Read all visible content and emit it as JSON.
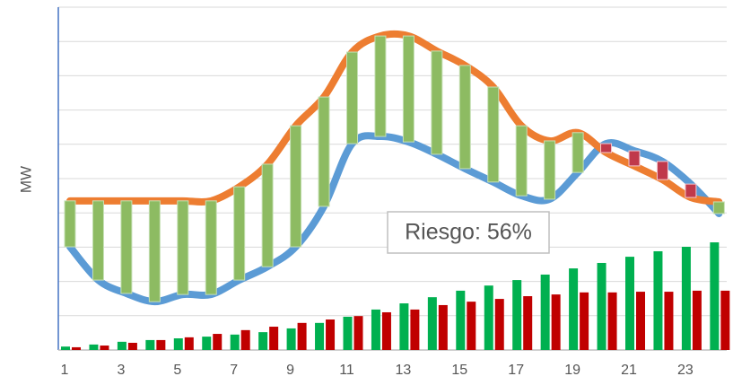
{
  "chart_data": {
    "type": "combo",
    "y_label": "MW",
    "annotation": "Riesgo: 56%",
    "categories": [
      1,
      null,
      3,
      null,
      5,
      null,
      7,
      null,
      9,
      null,
      11,
      null,
      13,
      null,
      15,
      null,
      17,
      null,
      19,
      null,
      21,
      null,
      23,
      null
    ],
    "ylim": [
      0,
      10
    ],
    "yticks": [
      0,
      1,
      2,
      3,
      4,
      5,
      6,
      7,
      8,
      9,
      10
    ],
    "grid": true,
    "series": [
      {
        "kind": "bar",
        "color": "#00b050",
        "values": [
          0.1,
          0.16,
          0.24,
          0.29,
          0.34,
          0.39,
          0.45,
          0.52,
          0.63,
          0.79,
          0.97,
          1.18,
          1.36,
          1.54,
          1.73,
          1.88,
          2.04,
          2.2,
          2.38,
          2.54,
          2.72,
          2.88,
          3.01,
          3.14
        ]
      },
      {
        "kind": "bar",
        "color": "#c00000",
        "values": [
          0.08,
          0.13,
          0.21,
          0.29,
          0.37,
          0.47,
          0.58,
          0.68,
          0.79,
          0.89,
          0.99,
          1.1,
          1.18,
          1.31,
          1.41,
          1.49,
          1.57,
          1.62,
          1.68,
          1.68,
          1.7,
          1.7,
          1.73,
          1.73
        ]
      },
      {
        "kind": "line",
        "color": "#5b9bd5",
        "values": [
          3.01,
          2.04,
          1.65,
          1.41,
          1.62,
          1.62,
          2.04,
          2.43,
          3.01,
          4.19,
          6.02,
          6.23,
          6.07,
          5.71,
          5.29,
          4.9,
          4.5,
          4.4,
          5.18,
          6.02,
          5.81,
          5.5,
          4.84,
          3.98
        ]
      },
      {
        "kind": "line",
        "color": "#ed7d31",
        "values": [
          4.35,
          4.35,
          4.35,
          4.35,
          4.35,
          4.35,
          4.76,
          5.42,
          6.54,
          7.38,
          8.69,
          9.16,
          9.16,
          8.72,
          8.3,
          7.67,
          6.54,
          6.1,
          6.34,
          5.76,
          5.37,
          4.97,
          4.45,
          4.32
        ]
      }
    ],
    "range_colors": {
      "positive": "#8dbb62",
      "negative": "#c0394b"
    }
  }
}
